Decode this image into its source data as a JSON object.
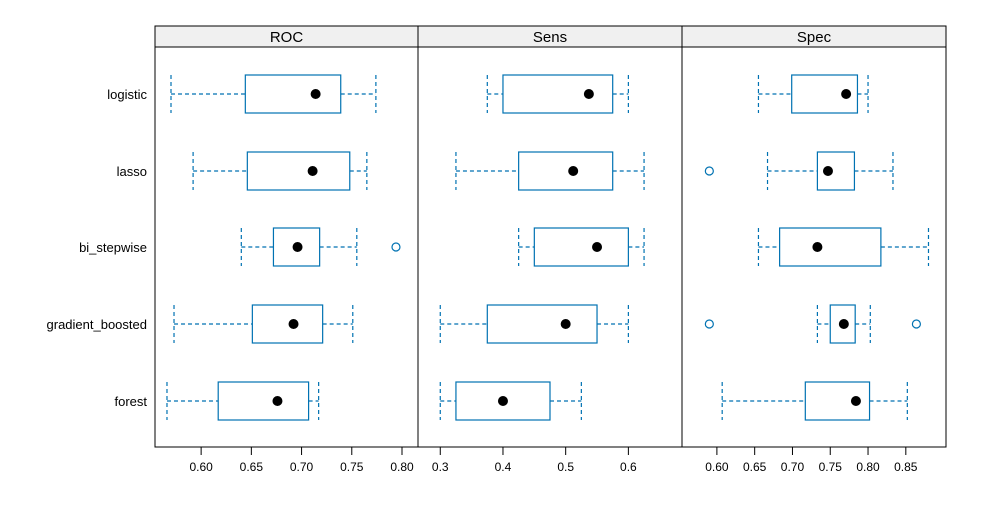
{
  "chart_data": {
    "type": "box",
    "title": "",
    "colors": {
      "box": "#0072B2",
      "median": "#000000",
      "strip": "#f0f0f0"
    },
    "categories": [
      "logistic",
      "lasso",
      "bi_stepwise",
      "gradient_boosted",
      "forest"
    ],
    "panels": [
      {
        "name": "ROC",
        "xlim": [
          0.57,
          0.8
        ],
        "ticks": [
          0.6,
          0.65,
          0.7,
          0.75,
          0.8
        ],
        "tick_labels": [
          "0.60",
          "0.65",
          "0.70",
          "0.75",
          "0.80"
        ],
        "boxes": [
          {
            "model": "logistic",
            "whisker_low": 0.57,
            "q1": 0.644,
            "median": 0.714,
            "q3": 0.739,
            "whisker_high": 0.774,
            "outliers": []
          },
          {
            "model": "lasso",
            "whisker_low": 0.592,
            "q1": 0.646,
            "median": 0.711,
            "q3": 0.748,
            "whisker_high": 0.765,
            "outliers": []
          },
          {
            "model": "bi_stepwise",
            "whisker_low": 0.64,
            "q1": 0.672,
            "median": 0.696,
            "q3": 0.718,
            "whisker_high": 0.755,
            "outliers": [
              0.794
            ]
          },
          {
            "model": "gradient_boosted",
            "whisker_low": 0.573,
            "q1": 0.651,
            "median": 0.692,
            "q3": 0.721,
            "whisker_high": 0.751,
            "outliers": []
          },
          {
            "model": "forest",
            "whisker_low": 0.566,
            "q1": 0.617,
            "median": 0.676,
            "q3": 0.707,
            "whisker_high": 0.717,
            "outliers": []
          }
        ]
      },
      {
        "name": "Sens",
        "xlim": [
          0.29,
          0.66
        ],
        "ticks": [
          0.3,
          0.4,
          0.5,
          0.6
        ],
        "tick_labels": [
          "0.3",
          "0.4",
          "0.5",
          "0.6"
        ],
        "boxes": [
          {
            "model": "logistic",
            "whisker_low": 0.375,
            "q1": 0.4,
            "median": 0.537,
            "q3": 0.575,
            "whisker_high": 0.6,
            "outliers": []
          },
          {
            "model": "lasso",
            "whisker_low": 0.325,
            "q1": 0.425,
            "median": 0.512,
            "q3": 0.575,
            "whisker_high": 0.625,
            "outliers": []
          },
          {
            "model": "bi_stepwise",
            "whisker_low": 0.425,
            "q1": 0.45,
            "median": 0.55,
            "q3": 0.6,
            "whisker_high": 0.625,
            "outliers": []
          },
          {
            "model": "gradient_boosted",
            "whisker_low": 0.3,
            "q1": 0.375,
            "median": 0.5,
            "q3": 0.55,
            "whisker_high": 0.6,
            "outliers": []
          },
          {
            "model": "forest",
            "whisker_low": 0.3,
            "q1": 0.325,
            "median": 0.4,
            "q3": 0.475,
            "whisker_high": 0.525,
            "outliers": []
          }
        ]
      },
      {
        "name": "Spec",
        "xlim": [
          0.575,
          0.882
        ],
        "ticks": [
          0.6,
          0.65,
          0.7,
          0.75,
          0.8,
          0.85
        ],
        "tick_labels": [
          "0.60",
          "0.65",
          "0.70",
          "0.75",
          "0.80",
          "0.85"
        ],
        "boxes": [
          {
            "model": "logistic",
            "whisker_low": 0.655,
            "q1": 0.699,
            "median": 0.771,
            "q3": 0.786,
            "whisker_high": 0.8,
            "outliers": []
          },
          {
            "model": "lasso",
            "whisker_low": 0.667,
            "q1": 0.733,
            "median": 0.747,
            "q3": 0.782,
            "whisker_high": 0.833,
            "outliers": [
              0.59
            ]
          },
          {
            "model": "bi_stepwise",
            "whisker_low": 0.655,
            "q1": 0.683,
            "median": 0.733,
            "q3": 0.817,
            "whisker_high": 0.88,
            "outliers": []
          },
          {
            "model": "gradient_boosted",
            "whisker_low": 0.733,
            "q1": 0.75,
            "median": 0.768,
            "q3": 0.783,
            "whisker_high": 0.803,
            "outliers": [
              0.59,
              0.864
            ]
          },
          {
            "model": "forest",
            "whisker_low": 0.607,
            "q1": 0.717,
            "median": 0.784,
            "q3": 0.802,
            "whisker_high": 0.852,
            "outliers": []
          }
        ]
      }
    ]
  }
}
